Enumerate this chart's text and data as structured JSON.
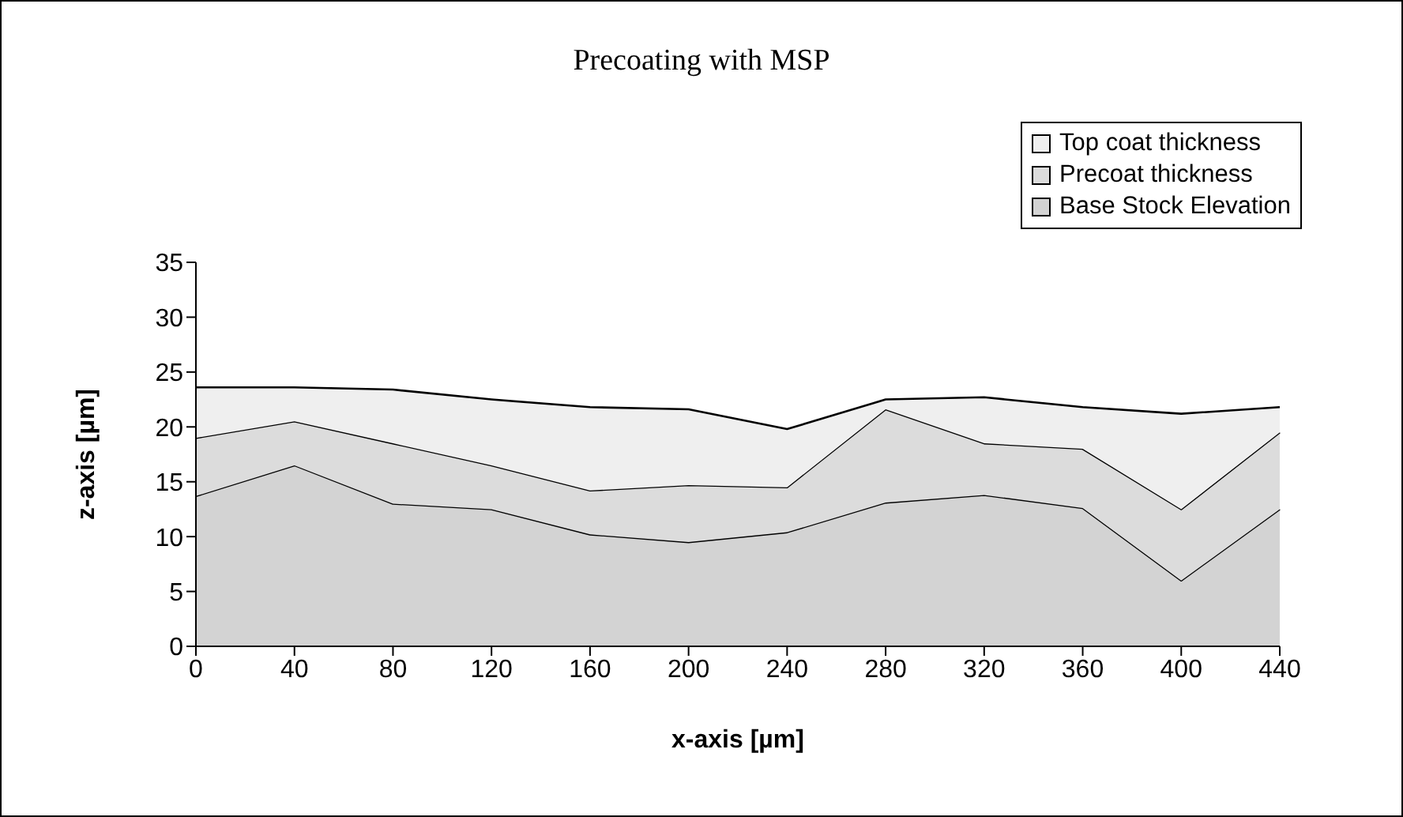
{
  "chart_data": {
    "type": "area",
    "title": "Precoating with MSP",
    "xlabel": "x-axis [µm]",
    "ylabel": "z-axis [µm]",
    "categories": [
      "0",
      "40",
      "80",
      "120",
      "160",
      "200",
      "240",
      "280",
      "320",
      "360",
      "400",
      "440"
    ],
    "stacked": true,
    "ylim": [
      0,
      35
    ],
    "yticks": [
      0,
      5,
      10,
      15,
      20,
      25,
      30,
      35
    ],
    "legend": "top right",
    "series": [
      {
        "name": "Base Stock Elevation",
        "color": "#d3d3d3",
        "values": [
          13.7,
          16.5,
          13,
          12.5,
          10.2,
          9.5,
          10.4,
          13.1,
          13.8,
          12.6,
          6,
          12.5
        ]
      },
      {
        "name": "Precoat thickness",
        "color": "#dcdcdc",
        "values": [
          5.3,
          4,
          5.5,
          4,
          4,
          5.2,
          4.1,
          8.5,
          4.7,
          5.4,
          6.5,
          7
        ]
      },
      {
        "name": "Top coat thickness",
        "color": "#efefef",
        "values": [
          4.6,
          3.1,
          4.9,
          6,
          7.6,
          6.9,
          5.3,
          0.9,
          4.2,
          3.8,
          8.7,
          2.3
        ]
      }
    ]
  }
}
